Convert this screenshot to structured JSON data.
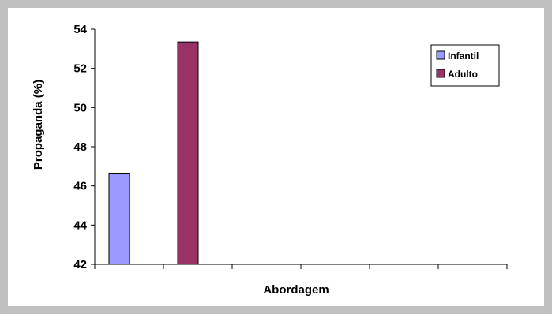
{
  "chart_data": {
    "type": "bar",
    "title": "",
    "xlabel": "Abordagem",
    "ylabel": "Propaganda (%)",
    "ylim": [
      42,
      54
    ],
    "yticks": [
      42,
      44,
      46,
      48,
      50,
      52,
      54
    ],
    "x_slots": 6,
    "series": [
      {
        "name": "Infantil",
        "slot": 0,
        "value": 46.65,
        "color": "#9999ff"
      },
      {
        "name": "Adulto",
        "slot": 1,
        "value": 53.35,
        "color": "#993366"
      }
    ],
    "legend": {
      "position": "top-right"
    },
    "grid": false
  }
}
